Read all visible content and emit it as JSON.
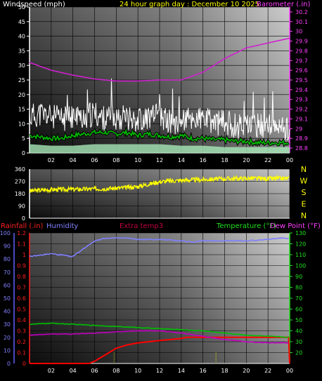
{
  "chart_data": [
    {
      "type": "line",
      "title": "24 hour graph day : December 10 2025",
      "left_axis_label": "Windspeed (mph)",
      "right_axis_label": "Barometer (.in)",
      "x_ticks": [
        "02",
        "04",
        "06",
        "08",
        "10",
        "12",
        "14",
        "16",
        "18",
        "20",
        "22",
        "00"
      ],
      "x_range": [
        0,
        24
      ],
      "left_ticks": [
        "0",
        "5",
        "10",
        "15",
        "20",
        "25",
        "30",
        "35",
        "40",
        "45",
        "50"
      ],
      "left_range": [
        0,
        50
      ],
      "right_ticks": [
        "28.8",
        "28.9",
        "29",
        "29.1",
        "29.2",
        "29.3",
        "29.4",
        "29.5",
        "29.6",
        "29.7",
        "29.8",
        "29.9",
        "30",
        "30.1",
        "30.2"
      ],
      "right_range": [
        28.75,
        30.25
      ],
      "series": [
        {
          "role": "wind_gust",
          "axis": "left",
          "color": "#ffffff",
          "x": [
            0,
            1,
            2,
            3,
            4,
            5,
            6,
            7,
            8,
            9,
            10,
            11,
            12,
            13,
            14,
            15,
            16,
            17,
            18,
            19,
            20,
            21,
            22,
            23,
            24
          ],
          "y": [
            12,
            13,
            12,
            11,
            12,
            12,
            13,
            11,
            12,
            12,
            11,
            12,
            12,
            10,
            11,
            11,
            11,
            10,
            10,
            9,
            9,
            9,
            9,
            8,
            8
          ]
        },
        {
          "role": "wind_avg",
          "axis": "left",
          "color": "#00c000",
          "x": [
            0,
            1,
            2,
            3,
            4,
            5,
            6,
            7,
            8,
            9,
            10,
            11,
            12,
            13,
            14,
            15,
            16,
            17,
            18,
            19,
            20,
            21,
            22,
            23,
            24
          ],
          "y": [
            6,
            5.5,
            5,
            5,
            6,
            6.5,
            7,
            7,
            6.5,
            7,
            6,
            6.5,
            6,
            5.5,
            6,
            5,
            5,
            4.5,
            4.5,
            4,
            4,
            3.5,
            3.5,
            3.5,
            3.5
          ]
        },
        {
          "role": "wind_fill",
          "axis": "left",
          "color": "#a8e8b8",
          "x": [
            0,
            2,
            4,
            6,
            8,
            10,
            12,
            14,
            16,
            18,
            20,
            22,
            24
          ],
          "y": [
            3,
            2.5,
            2.5,
            3,
            3,
            3,
            3,
            2.5,
            2.5,
            2,
            2,
            2,
            2
          ]
        },
        {
          "role": "barometer",
          "axis": "right",
          "color": "#d020d0",
          "x": [
            0,
            2,
            4,
            6,
            8,
            10,
            12,
            14,
            16,
            18,
            20,
            22,
            24
          ],
          "y": [
            29.68,
            29.6,
            29.55,
            29.51,
            29.49,
            29.49,
            29.5,
            29.5,
            29.58,
            29.72,
            29.83,
            29.88,
            29.93
          ]
        }
      ]
    },
    {
      "type": "line",
      "right_compass_labels": [
        "N",
        "W",
        "S",
        "E",
        "N"
      ],
      "left_ticks": [
        "0",
        "90",
        "180",
        "270",
        "360"
      ],
      "left_range": [
        0,
        360
      ],
      "series": [
        {
          "role": "wind_direction",
          "color": "#ffff00",
          "x": [
            0,
            2,
            4,
            6,
            8,
            9,
            10,
            11,
            12,
            14,
            16,
            18,
            20,
            22,
            24
          ],
          "y": [
            200,
            210,
            212,
            215,
            220,
            225,
            232,
            250,
            268,
            278,
            283,
            290,
            292,
            290,
            292
          ]
        }
      ]
    },
    {
      "type": "line",
      "labels": {
        "rainfall": "Rainfall (.in)",
        "humidity": "Humidity",
        "extra": "Extra temp3",
        "temperature": "Temperature (°F)",
        "dewpoint": "Dew Point (°F)"
      },
      "x_ticks": [
        "02",
        "04",
        "06",
        "08",
        "10",
        "12",
        "14",
        "16",
        "18",
        "20",
        "22",
        "00"
      ],
      "x_range": [
        0,
        24
      ],
      "humidity_ticks": [
        "0",
        "10",
        "20",
        "30",
        "40",
        "50",
        "60",
        "70",
        "80",
        "90",
        "100"
      ],
      "humidity_range": [
        0,
        100
      ],
      "rain_ticks": [
        "0",
        "0.1",
        "0.2",
        "0.3",
        "0.4",
        "0.5",
        "0.6",
        "0.7",
        "0.8",
        "0.9",
        "1",
        "1.1",
        "1.2"
      ],
      "rain_range": [
        0,
        1.2
      ],
      "temp_ticks": [
        "20",
        "30",
        "40",
        "50",
        "60",
        "70",
        "80",
        "90",
        "100",
        "110",
        "120",
        "130"
      ],
      "temp_range": [
        10,
        130
      ],
      "series": [
        {
          "role": "humidity",
          "axis": "humidity",
          "color": "#8080ff",
          "x": [
            0,
            2,
            3,
            4,
            5,
            6,
            7,
            8,
            9,
            10,
            12,
            14,
            15,
            16,
            18,
            20,
            22,
            23,
            24
          ],
          "y": [
            82,
            84,
            83,
            82,
            88,
            94,
            96,
            96,
            96,
            95,
            95,
            94,
            93,
            94,
            94,
            94,
            95,
            96,
            96
          ]
        },
        {
          "role": "rainfall",
          "axis": "rain",
          "color": "#ff0000",
          "x": [
            0,
            4,
            5.5,
            6,
            7,
            8,
            9,
            10,
            11,
            12,
            13,
            14,
            14.5,
            16,
            18,
            20,
            22,
            23.9,
            24
          ],
          "y": [
            0,
            0,
            0,
            0.02,
            0.08,
            0.14,
            0.17,
            0.19,
            0.2,
            0.21,
            0.22,
            0.23,
            0.24,
            0.24,
            0.24,
            0.24,
            0.24,
            0.24,
            0
          ]
        },
        {
          "role": "temperature",
          "axis": "temp",
          "color": "#00c000",
          "x": [
            0,
            2,
            4,
            6,
            8,
            10,
            12,
            14,
            16,
            18,
            20,
            22,
            24
          ],
          "y": [
            46,
            47,
            46,
            45,
            44,
            43,
            42,
            41,
            40,
            38,
            36,
            35,
            34
          ]
        },
        {
          "role": "dewpoint",
          "axis": "temp",
          "color": "#c000c0",
          "x": [
            0,
            2,
            4,
            6,
            8,
            10,
            12,
            14,
            16,
            18,
            20,
            22,
            24
          ],
          "y": [
            36,
            37,
            37,
            38,
            39,
            40,
            40,
            38,
            35,
            32,
            30,
            29,
            29
          ]
        }
      ],
      "rain_event_markers_x": [
        7.8,
        17.2
      ]
    }
  ]
}
